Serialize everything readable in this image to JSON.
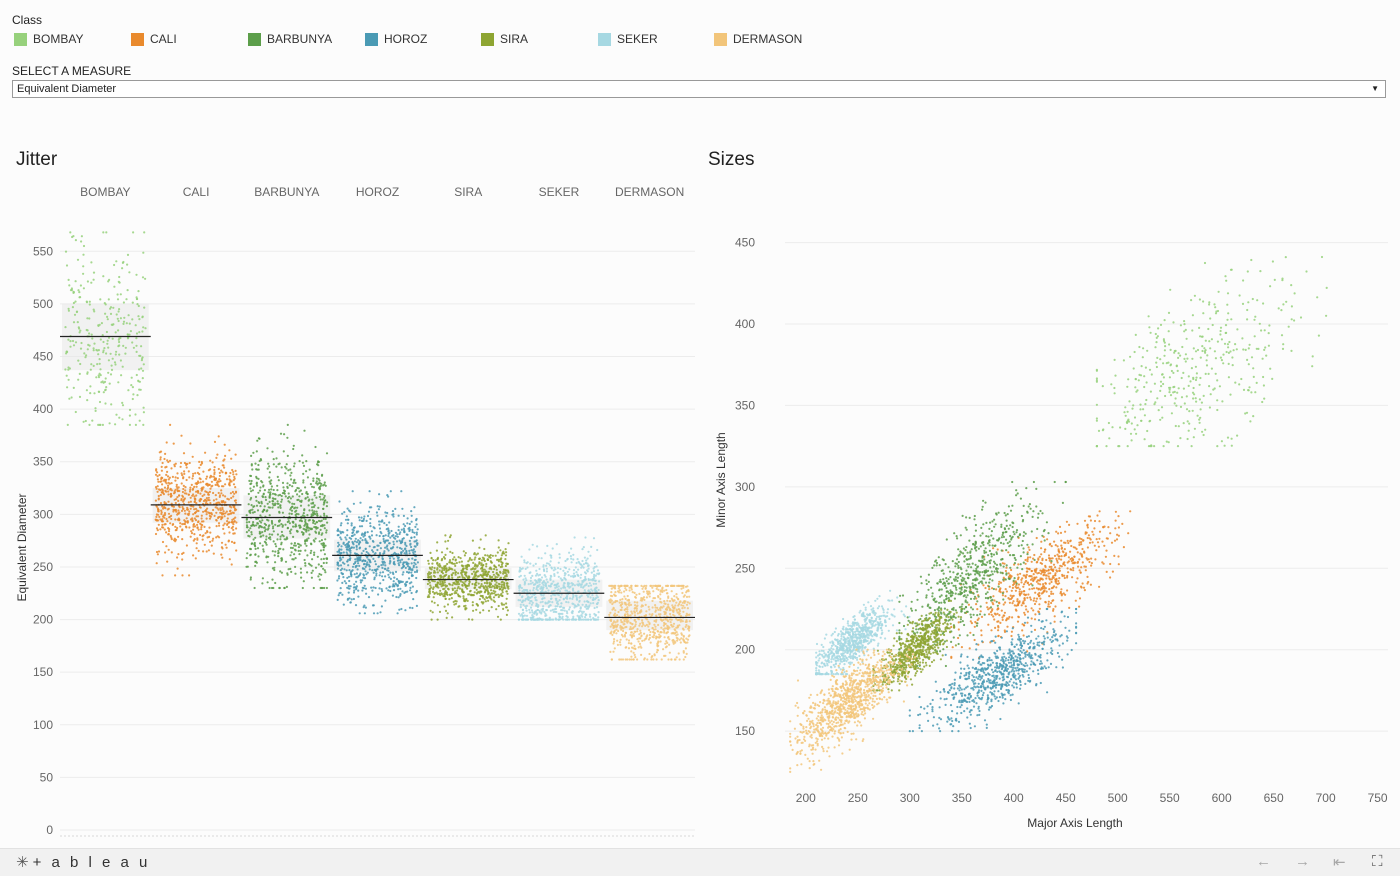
{
  "legend": {
    "title": "Class",
    "items": [
      {
        "label": "BOMBAY",
        "color": "#97d17c"
      },
      {
        "label": "CALI",
        "color": "#e98a2d"
      },
      {
        "label": "BARBUNYA",
        "color": "#5c9e4a"
      },
      {
        "label": "HOROZ",
        "color": "#4a9ab4"
      },
      {
        "label": "SIRA",
        "color": "#8ea532"
      },
      {
        "label": "SEKER",
        "color": "#a6d8e2"
      },
      {
        "label": "DERMASON",
        "color": "#f2c57a"
      }
    ]
  },
  "measure": {
    "label": "SELECT A MEASURE",
    "selected": "Equivalent Diameter"
  },
  "footer": {
    "brand": "+ a b l e a u",
    "brand_icon": "tableau-logo-icon",
    "nav_icons": [
      "undo-arrow-icon",
      "redo-arrow-icon",
      "revert-icon",
      "fullscreen-icon"
    ]
  },
  "chart_data": [
    {
      "type": "scatter",
      "title": "Jitter",
      "ylabel": "Equivalent Diameter",
      "xlabel": "",
      "categories": [
        "BOMBAY",
        "CALI",
        "BARBUNYA",
        "HOROZ",
        "SIRA",
        "SEKER",
        "DERMASON"
      ],
      "ylim": [
        0,
        575
      ],
      "yticks": [
        0,
        50,
        100,
        150,
        200,
        250,
        300,
        350,
        400,
        450,
        500,
        550
      ],
      "grid": true,
      "series": [
        {
          "name": "BOMBAY",
          "median": 469,
          "q1": 437,
          "q3": 500,
          "min": 385,
          "max": 568
        },
        {
          "name": "CALI",
          "median": 309,
          "q1": 292,
          "q3": 325,
          "min": 242,
          "max": 385
        },
        {
          "name": "BARBUNYA",
          "median": 297,
          "q1": 277,
          "q3": 318,
          "min": 230,
          "max": 385
        },
        {
          "name": "HOROZ",
          "median": 261,
          "q1": 246,
          "q3": 276,
          "min": 206,
          "max": 322
        },
        {
          "name": "SIRA",
          "median": 238,
          "q1": 229,
          "q3": 249,
          "min": 200,
          "max": 280
        },
        {
          "name": "SEKER",
          "median": 225,
          "q1": 212,
          "q3": 238,
          "min": 200,
          "max": 278
        },
        {
          "name": "DERMASON",
          "median": 202,
          "q1": 190,
          "q3": 218,
          "min": 162,
          "max": 232
        }
      ]
    },
    {
      "type": "scatter",
      "title": "Sizes",
      "xlabel": "Major Axis Length",
      "ylabel": "Minor Axis Length",
      "xlim": [
        180,
        760
      ],
      "ylim": [
        120,
        470
      ],
      "xticks": [
        200,
        250,
        300,
        350,
        400,
        450,
        500,
        550,
        600,
        650,
        700,
        750
      ],
      "yticks": [
        150,
        200,
        250,
        300,
        350,
        400,
        450
      ],
      "grid": true,
      "series": [
        {
          "name": "BOMBAY",
          "x_center": 575,
          "y_center": 372,
          "x_range": [
            480,
            725
          ],
          "y_range": [
            325,
            462
          ]
        },
        {
          "name": "CALI",
          "x_center": 425,
          "y_center": 243,
          "x_range": [
            340,
            520
          ],
          "y_range": [
            195,
            285
          ]
        },
        {
          "name": "BARBUNYA",
          "x_center": 360,
          "y_center": 245,
          "x_range": [
            290,
            450
          ],
          "y_range": [
            190,
            303
          ]
        },
        {
          "name": "HOROZ",
          "x_center": 385,
          "y_center": 185,
          "x_range": [
            300,
            460
          ],
          "y_range": [
            150,
            225
          ]
        },
        {
          "name": "SIRA",
          "x_center": 305,
          "y_center": 200,
          "x_range": [
            265,
            350
          ],
          "y_range": [
            175,
            230
          ]
        },
        {
          "name": "SEKER",
          "x_center": 245,
          "y_center": 205,
          "x_range": [
            210,
            300
          ],
          "y_range": [
            185,
            240
          ]
        },
        {
          "name": "DERMASON",
          "x_center": 240,
          "y_center": 168,
          "x_range": [
            185,
            305
          ],
          "y_range": [
            125,
            200
          ]
        }
      ]
    }
  ]
}
